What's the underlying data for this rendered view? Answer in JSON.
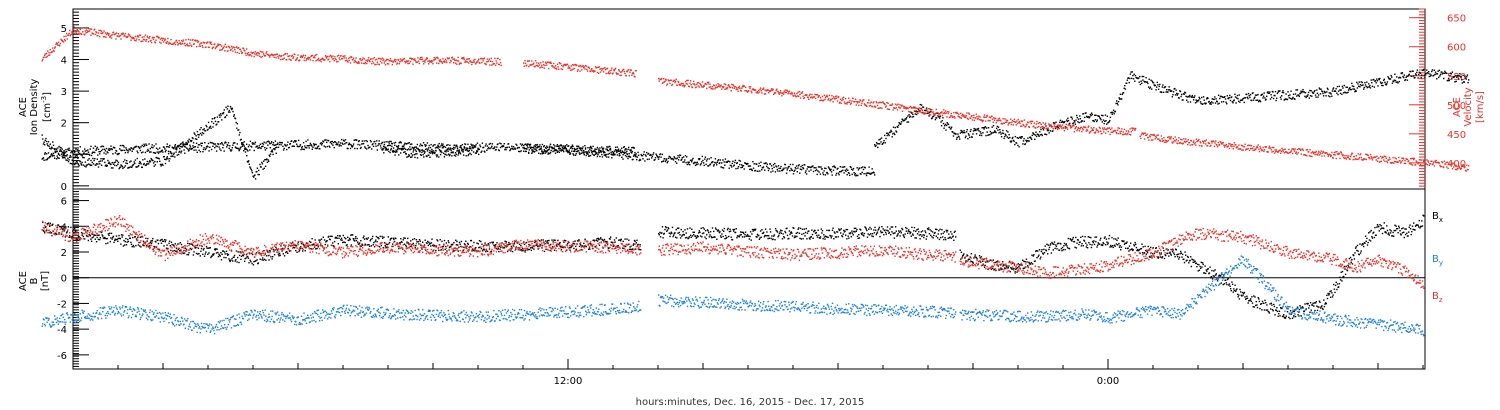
{
  "colors": {
    "black": "#000000",
    "red": "#e8322a",
    "blue": "#1f82d6",
    "background": "#ffffff"
  },
  "xlabel": "hours:minutes, Dec. 16, 2015 - Dec. 17, 2015",
  "chart_data": [
    {
      "type": "scatter",
      "title": "",
      "x": {
        "unit": "hour from 2015-12-16 00:00",
        "range": [
          0.3,
          32.0
        ],
        "ticks": [
          12,
          24
        ],
        "tick_labels": [
          "12:00",
          "0:00"
        ]
      },
      "ylabel": [
        "ACE",
        "Ion Density",
        "[cm",
        "-3",
        "]"
      ],
      "ylim": [
        -0.1,
        5.6
      ],
      "yticks": [
        0,
        1,
        2,
        3,
        4,
        5
      ],
      "y2label": [
        "ACE",
        "Velocity",
        "[km/s]"
      ],
      "y2lim": [
        355,
        665
      ],
      "y2ticks": [
        400,
        450,
        500,
        550,
        600,
        650
      ],
      "grid": false,
      "series": [
        {
          "name": "Ion Density",
          "axis": "left",
          "color": "black",
          "segments": [
            [
              [
                0.3,
                0.95
              ],
              [
                1.0,
                1.1
              ],
              [
                2.5,
                1.2
              ],
              [
                3.5,
                1.2
              ],
              [
                4.0,
                1.25
              ],
              [
                5.5,
                1.3
              ],
              [
                7.0,
                1.35
              ],
              [
                8.5,
                1.25
              ],
              [
                9.5,
                1.2
              ],
              [
                10.5,
                1.25
              ],
              [
                11.5,
                1.2
              ],
              [
                12.5,
                1.15
              ],
              [
                13.5,
                1.1
              ]
            ],
            [
              [
                0.3,
                1.5
              ],
              [
                1.0,
                0.8
              ],
              [
                2.0,
                0.7
              ],
              [
                3.0,
                0.8
              ],
              [
                4.0,
                1.9
              ],
              [
                4.5,
                2.5
              ],
              [
                5.0,
                0.3
              ],
              [
                5.5,
                1.2
              ]
            ],
            [
              [
                7.85,
                1.2
              ],
              [
                8.5,
                1.05
              ],
              [
                9.5,
                1.1
              ],
              [
                10.0,
                1.15
              ]
            ],
            [
              [
                11.0,
                1.2
              ],
              [
                12.0,
                1.15
              ],
              [
                13.0,
                1.05
              ],
              [
                14.0,
                0.9
              ],
              [
                15.0,
                0.8
              ],
              [
                16.0,
                0.65
              ],
              [
                17.0,
                0.55
              ],
              [
                18.0,
                0.5
              ],
              [
                18.8,
                0.48
              ]
            ],
            [
              [
                18.8,
                1.2
              ],
              [
                19.4,
                2.0
              ],
              [
                19.8,
                2.5
              ],
              [
                20.2,
                2.2
              ],
              [
                20.6,
                1.6
              ],
              [
                21.5,
                1.8
              ],
              [
                22.0,
                1.4
              ],
              [
                22.8,
                1.9
              ],
              [
                23.5,
                2.2
              ],
              [
                24.0,
                2.1
              ],
              [
                24.5,
                3.5
              ],
              [
                25.0,
                3.2
              ],
              [
                26.0,
                2.7
              ],
              [
                27.0,
                2.8
              ],
              [
                28.0,
                2.9
              ],
              [
                29.0,
                3.0
              ],
              [
                30.0,
                3.3
              ],
              [
                31.0,
                3.6
              ],
              [
                32.0,
                3.4
              ]
            ]
          ]
        },
        {
          "name": "Velocity",
          "axis": "right",
          "color": "red",
          "segments": [
            [
              [
                0.3,
                580
              ],
              [
                1.0,
                630
              ],
              [
                2.0,
                620
              ],
              [
                3.0,
                612
              ],
              [
                4.0,
                605
              ],
              [
                5.0,
                590
              ],
              [
                5.5,
                585
              ],
              [
                6.0,
                583
              ],
              [
                7.0,
                580
              ],
              [
                8.0,
                575
              ],
              [
                9.0,
                578
              ],
              [
                10.0,
                576
              ],
              [
                10.5,
                575
              ]
            ],
            [
              [
                11.0,
                573
              ],
              [
                11.5,
                570
              ],
              [
                12.0,
                567
              ],
              [
                12.5,
                562
              ],
              [
                13.5,
                555
              ]
            ],
            [
              [
                14.0,
                542
              ],
              [
                15.0,
                535
              ],
              [
                16.0,
                528
              ],
              [
                17.0,
                520
              ],
              [
                18.0,
                510
              ],
              [
                19.0,
                500
              ],
              [
                20.0,
                490
              ],
              [
                21.0,
                480
              ],
              [
                22.0,
                470
              ],
              [
                23.0,
                462
              ],
              [
                24.0,
                456
              ],
              [
                24.6,
                455
              ]
            ],
            [
              [
                24.7,
                448
              ],
              [
                25.5,
                440
              ],
              [
                26.5,
                432
              ],
              [
                27.5,
                425
              ],
              [
                28.5,
                418
              ],
              [
                29.5,
                412
              ],
              [
                30.5,
                405
              ],
              [
                31.5,
                398
              ],
              [
                32.0,
                392
              ]
            ]
          ]
        }
      ]
    },
    {
      "type": "scatter",
      "title": "",
      "x": {
        "unit": "hour from 2015-12-16 00:00",
        "range": [
          0.3,
          32.0
        ]
      },
      "ylabel": [
        "ACE",
        "B",
        "[nT]"
      ],
      "ylim": [
        -7.1,
        6.9
      ],
      "yticks": [
        -6,
        -4,
        -2,
        0,
        2,
        4,
        6
      ],
      "zero_line": true,
      "legend": [
        "Bx",
        "By",
        "Bz"
      ],
      "legend_placement": "right",
      "grid": false,
      "series": [
        {
          "name": "Bx",
          "color": "black",
          "segments": [
            [
              [
                0.3,
                4.0
              ],
              [
                1.0,
                3.5
              ],
              [
                2.0,
                3.0
              ],
              [
                3.0,
                2.6
              ],
              [
                4.0,
                2.0
              ],
              [
                5.0,
                1.5
              ],
              [
                6.0,
                2.5
              ],
              [
                7.0,
                3.0
              ],
              [
                8.0,
                2.8
              ],
              [
                9.0,
                2.6
              ],
              [
                10.0,
                2.5
              ],
              [
                11.0,
                2.5
              ],
              [
                12.0,
                2.6
              ],
              [
                13.0,
                2.8
              ],
              [
                13.6,
                2.5
              ]
            ],
            [
              [
                14.0,
                3.6
              ],
              [
                15.0,
                3.5
              ],
              [
                16.0,
                3.4
              ],
              [
                17.0,
                3.5
              ],
              [
                18.0,
                3.5
              ],
              [
                19.0,
                3.6
              ],
              [
                20.0,
                3.5
              ],
              [
                20.6,
                3.4
              ]
            ],
            [
              [
                20.7,
                1.8
              ],
              [
                21.5,
                1.0
              ],
              [
                22.0,
                0.8
              ],
              [
                22.6,
                2.2
              ],
              [
                23.2,
                2.8
              ],
              [
                24.0,
                2.9
              ],
              [
                25.0,
                2.0
              ],
              [
                25.6,
                1.8
              ],
              [
                26.6,
                -0.2
              ],
              [
                27.0,
                -1.5
              ],
              [
                28.0,
                -2.8
              ],
              [
                28.8,
                -2.0
              ],
              [
                29.5,
                2.0
              ],
              [
                30.0,
                4.0
              ],
              [
                30.6,
                3.5
              ],
              [
                31.0,
                4.6
              ]
            ]
          ]
        },
        {
          "name": "By",
          "color": "blue",
          "segments": [
            [
              [
                0.3,
                -3.5
              ],
              [
                1.0,
                -3.0
              ],
              [
                2.0,
                -2.5
              ],
              [
                3.0,
                -3.0
              ],
              [
                4.0,
                -4.0
              ],
              [
                5.0,
                -2.8
              ],
              [
                6.0,
                -3.2
              ],
              [
                7.0,
                -2.5
              ],
              [
                8.0,
                -2.7
              ],
              [
                9.0,
                -2.9
              ],
              [
                10.0,
                -3.0
              ],
              [
                11.0,
                -2.8
              ],
              [
                12.0,
                -2.6
              ],
              [
                13.0,
                -2.4
              ],
              [
                13.6,
                -2.2
              ]
            ],
            [
              [
                14.0,
                -1.7
              ],
              [
                15.0,
                -1.9
              ],
              [
                16.0,
                -2.1
              ],
              [
                17.0,
                -2.2
              ],
              [
                18.0,
                -2.4
              ],
              [
                19.0,
                -2.5
              ],
              [
                20.0,
                -2.6
              ],
              [
                20.6,
                -2.7
              ]
            ],
            [
              [
                20.7,
                -2.8
              ],
              [
                21.5,
                -2.9
              ],
              [
                22.5,
                -3.0
              ],
              [
                23.5,
                -2.8
              ],
              [
                24.0,
                -3.1
              ],
              [
                25.0,
                -2.5
              ],
              [
                25.6,
                -2.8
              ],
              [
                26.0,
                -1.5
              ],
              [
                27.0,
                1.5
              ],
              [
                28.0,
                -2.5
              ],
              [
                29.0,
                -3.2
              ],
              [
                30.0,
                -3.6
              ],
              [
                30.6,
                -3.8
              ],
              [
                31.0,
                -4.0
              ]
            ]
          ]
        },
        {
          "name": "Bz",
          "color": "red",
          "segments": [
            [
              [
                0.3,
                4.0
              ],
              [
                1.0,
                3.2
              ],
              [
                2.0,
                4.5
              ],
              [
                3.0,
                1.8
              ],
              [
                4.0,
                3.2
              ],
              [
                5.0,
                2.0
              ],
              [
                6.0,
                2.6
              ],
              [
                7.0,
                2.0
              ],
              [
                8.0,
                2.4
              ],
              [
                9.0,
                2.2
              ],
              [
                10.0,
                2.1
              ],
              [
                11.0,
                2.6
              ],
              [
                12.0,
                2.5
              ],
              [
                13.0,
                2.4
              ],
              [
                13.6,
                2.2
              ]
            ],
            [
              [
                14.0,
                2.2
              ],
              [
                15.0,
                2.4
              ],
              [
                16.0,
                2.1
              ],
              [
                17.0,
                1.8
              ],
              [
                18.0,
                2.0
              ],
              [
                19.0,
                2.2
              ],
              [
                20.0,
                1.8
              ],
              [
                20.6,
                1.7
              ]
            ],
            [
              [
                20.7,
                1.4
              ],
              [
                21.5,
                1.0
              ],
              [
                22.0,
                0.8
              ],
              [
                22.6,
                0.4
              ],
              [
                23.2,
                0.6
              ],
              [
                24.0,
                1.0
              ],
              [
                25.0,
                2.0
              ],
              [
                25.6,
                3.0
              ],
              [
                26.0,
                3.5
              ],
              [
                27.0,
                3.2
              ],
              [
                28.0,
                2.0
              ],
              [
                29.0,
                1.5
              ],
              [
                29.5,
                0.8
              ],
              [
                30.0,
                1.5
              ],
              [
                30.6,
                0.5
              ],
              [
                31.0,
                -0.5
              ]
            ]
          ]
        }
      ]
    }
  ]
}
